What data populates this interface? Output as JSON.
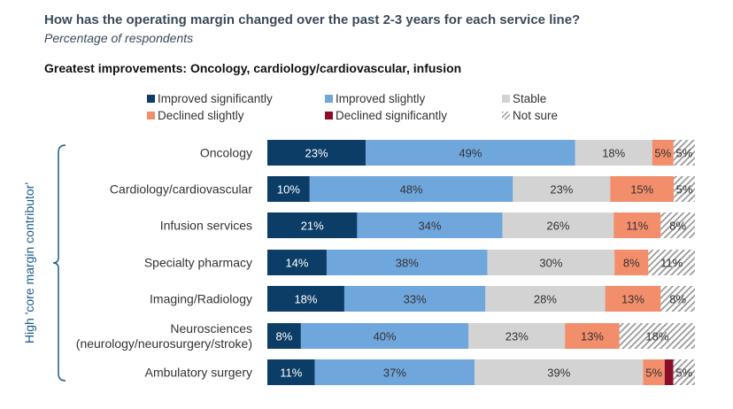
{
  "title": "How has the operating margin changed over the past 2-3 years for each service line?",
  "subtitle": "Percentage of respondents",
  "headline": "Greatest improvements: Oncology, cardiology/cardiovascular, infusion",
  "side_label": "High  'core margin contributor'",
  "colors": {
    "improved_significantly": "#0c3d66",
    "improved_slightly": "#6fa6dc",
    "stable": "#d3d3d3",
    "declined_slightly": "#f28e6b",
    "declined_significantly": "#8b0f2a",
    "not_sure": "hatch"
  },
  "chart_data": {
    "type": "bar",
    "orientation": "horizontal",
    "stacked": true,
    "unit": "%",
    "categories": [
      [
        "Oncology"
      ],
      [
        "Cardiology/cardiovascular"
      ],
      [
        "Infusion services"
      ],
      [
        "Specialty pharmacy"
      ],
      [
        "Imaging/Radiology"
      ],
      [
        "Neurosciences",
        "(neurology/neurosurgery/stroke)"
      ],
      [
        "Ambulatory surgery"
      ]
    ],
    "series": [
      {
        "name": "Improved significantly",
        "key": "improved_significantly",
        "values": [
          23,
          10,
          21,
          14,
          18,
          8,
          11
        ]
      },
      {
        "name": "Improved slightly",
        "key": "improved_slightly",
        "values": [
          49,
          48,
          34,
          38,
          33,
          40,
          37
        ]
      },
      {
        "name": "Stable",
        "key": "stable",
        "values": [
          18,
          23,
          26,
          30,
          28,
          23,
          39
        ]
      },
      {
        "name": "Declined slightly",
        "key": "declined_slightly",
        "values": [
          5,
          15,
          11,
          8,
          13,
          13,
          5
        ]
      },
      {
        "name": "Declined significantly",
        "key": "declined_significantly",
        "values": [
          0,
          0,
          0,
          0,
          0,
          0,
          2
        ]
      },
      {
        "name": "Not sure",
        "key": "not_sure",
        "values": [
          5,
          5,
          8,
          11,
          8,
          18,
          5
        ]
      }
    ],
    "labels": [
      [
        "23%",
        "49%",
        "18%",
        "5%",
        "",
        "5%"
      ],
      [
        "10%",
        "48%",
        "23%",
        "15%",
        "",
        "5%"
      ],
      [
        "21%",
        "34%",
        "26%",
        "11%",
        "",
        "8%"
      ],
      [
        "14%",
        "38%",
        "30%",
        "8%",
        "",
        "11%"
      ],
      [
        "18%",
        "33%",
        "28%",
        "13%",
        "",
        "8%"
      ],
      [
        "8%",
        "40%",
        "23%",
        "13%",
        "",
        "18%"
      ],
      [
        "11%",
        "37%",
        "39%",
        "5%",
        "",
        "5%"
      ]
    ],
    "legend_position": "top",
    "grid": false
  }
}
